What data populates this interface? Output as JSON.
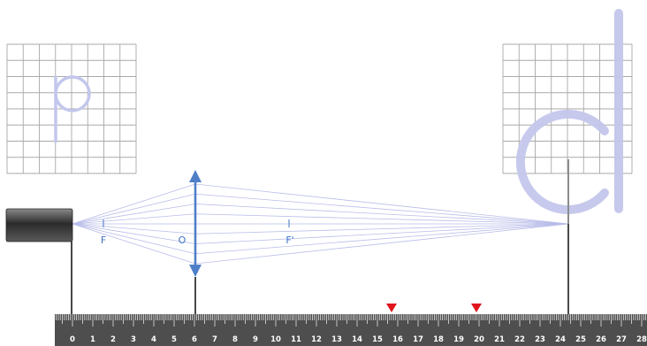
{
  "labels": {
    "focal_left": "F",
    "optical_center": "O",
    "focal_right": "F'"
  },
  "ruler": {
    "tick_labels": [
      "0",
      "1",
      "2",
      "3",
      "4",
      "5",
      "6",
      "7",
      "8",
      "9",
      "10",
      "11",
      "12",
      "13",
      "14",
      "15",
      "16",
      "17",
      "18",
      "19",
      "20",
      "21",
      "22",
      "23",
      "24",
      "25",
      "26",
      "27",
      "28"
    ]
  },
  "colors": {
    "ray": "#b9bde9",
    "lens": "#4f7fc9",
    "marker": "#e0141c",
    "letter": "#c4c7ec",
    "label": "#3f74c6",
    "ruler": "#4e4e4e"
  }
}
